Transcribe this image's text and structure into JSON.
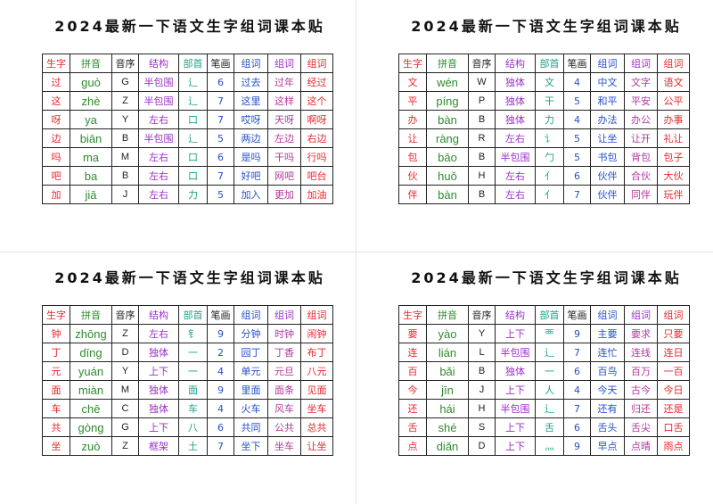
{
  "sheets": [
    {
      "title": "2024最新一下语文生字组词课本贴",
      "headers": [
        "生字",
        "拼音",
        "音序",
        "结构",
        "部首",
        "笔画",
        "组词",
        "组词",
        "组词"
      ],
      "rows": [
        [
          "过",
          "guò",
          "G",
          "半包围",
          "辶",
          6,
          "过去",
          "过年",
          "经过"
        ],
        [
          "这",
          "zhè",
          "Z",
          "半包围",
          "辶",
          7,
          "这里",
          "这样",
          "这个"
        ],
        [
          "呀",
          "ya",
          "Y",
          "左右",
          "口",
          7,
          "哎呀",
          "天呀",
          "啊呀"
        ],
        [
          "边",
          "biān",
          "B",
          "半包围",
          "辶",
          5,
          "两边",
          "左边",
          "右边"
        ],
        [
          "吗",
          "ma",
          "M",
          "左右",
          "口",
          6,
          "是吗",
          "干吗",
          "行吗"
        ],
        [
          "吧",
          "ba",
          "B",
          "左右",
          "口",
          7,
          "好吧",
          "网吧",
          "吧台"
        ],
        [
          "加",
          "jiā",
          "J",
          "左右",
          "力",
          5,
          "加入",
          "更加",
          "加油"
        ]
      ]
    },
    {
      "title": "2024最新一下语文生字组词课本贴",
      "headers": [
        "生字",
        "拼音",
        "音序",
        "结构",
        "部首",
        "笔画",
        "组词",
        "组词",
        "组词"
      ],
      "rows": [
        [
          "文",
          "wén",
          "W",
          "独体",
          "文",
          4,
          "中文",
          "文字",
          "语文"
        ],
        [
          "平",
          "píng",
          "P",
          "独体",
          "干",
          5,
          "和平",
          "平安",
          "公平"
        ],
        [
          "办",
          "bàn",
          "B",
          "独体",
          "力",
          4,
          "办法",
          "办公",
          "办事"
        ],
        [
          "让",
          "ràng",
          "R",
          "左右",
          "讠",
          5,
          "让坐",
          "让开",
          "礼让"
        ],
        [
          "包",
          "bāo",
          "B",
          "半包围",
          "勹",
          5,
          "书包",
          "背包",
          "包子"
        ],
        [
          "伙",
          "huǒ",
          "H",
          "左右",
          "亻",
          6,
          "伙伴",
          "合伙",
          "大伙"
        ],
        [
          "伴",
          "bàn",
          "B",
          "左右",
          "亻",
          7,
          "伙伴",
          "同伴",
          "玩伴"
        ]
      ]
    },
    {
      "title": "2024最新一下语文生字组词课本贴",
      "headers": [
        "生字",
        "拼音",
        "音序",
        "结构",
        "部首",
        "笔画",
        "组词",
        "组词",
        "组词"
      ],
      "rows": [
        [
          "钟",
          "zhōng",
          "Z",
          "左右",
          "钅",
          9,
          "分钟",
          "时钟",
          "闹钟"
        ],
        [
          "丁",
          "dīng",
          "D",
          "独体",
          "一",
          2,
          "园丁",
          "丁香",
          "布丁"
        ],
        [
          "元",
          "yuán",
          "Y",
          "上下",
          "一",
          4,
          "单元",
          "元旦",
          "八元"
        ],
        [
          "面",
          "miàn",
          "M",
          "独体",
          "面",
          9,
          "里面",
          "面条",
          "见面"
        ],
        [
          "车",
          "chē",
          "C",
          "独体",
          "车",
          4,
          "火车",
          "风车",
          "坐车"
        ],
        [
          "共",
          "gòng",
          "G",
          "上下",
          "八",
          6,
          "共同",
          "公共",
          "总共"
        ],
        [
          "坐",
          "zuò",
          "Z",
          "框架",
          "土",
          7,
          "坐下",
          "坐车",
          "让坐"
        ]
      ]
    },
    {
      "title": "2024最新一下语文生字组词课本贴",
      "headers": [
        "生字",
        "拼音",
        "音序",
        "结构",
        "部首",
        "笔画",
        "组词",
        "组词",
        "组词"
      ],
      "rows": [
        [
          "要",
          "yào",
          "Y",
          "上下",
          "覀",
          9,
          "主要",
          "要求",
          "只要"
        ],
        [
          "连",
          "lián",
          "L",
          "半包围",
          "辶",
          7,
          "连忙",
          "连线",
          "连日"
        ],
        [
          "百",
          "bǎi",
          "B",
          "独体",
          "一",
          6,
          "百鸟",
          "百万",
          "一百"
        ],
        [
          "今",
          "jīn",
          "J",
          "上下",
          "人",
          4,
          "今天",
          "古今",
          "今日"
        ],
        [
          "还",
          "hái",
          "H",
          "半包围",
          "辶",
          7,
          "还有",
          "归还",
          "还是"
        ],
        [
          "舌",
          "shé",
          "S",
          "上下",
          "舌",
          6,
          "舌头",
          "舌尖",
          "口舌"
        ],
        [
          "点",
          "diǎn",
          "D",
          "上下",
          "灬",
          9,
          "早点",
          "点晴",
          "雨点"
        ]
      ]
    }
  ]
}
